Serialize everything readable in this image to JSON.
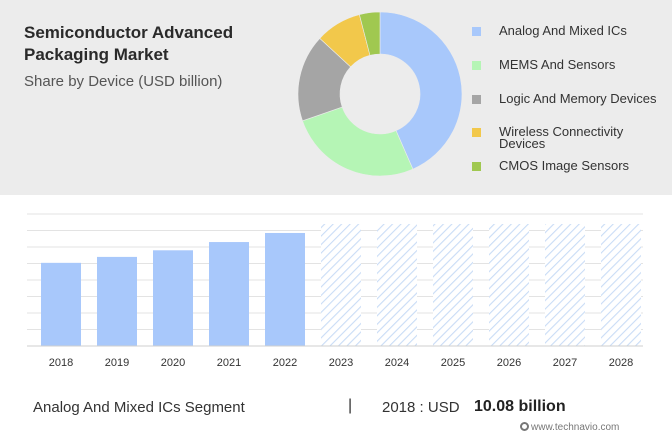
{
  "header": {
    "title": "Semiconductor Advanced Packaging Market",
    "subtitle": "Share by Device (USD billion)"
  },
  "chart_data": [
    {
      "type": "pie",
      "variant": "donut",
      "legend_position": "right",
      "slices": [
        {
          "label": "Analog And Mixed ICs",
          "value": 43,
          "color": "#a8c8fb"
        },
        {
          "label": "MEMS And Sensors",
          "value": 26,
          "color": "#b5f5b5"
        },
        {
          "label": "Logic And Memory Devices",
          "value": 17,
          "color": "#a5a5a5"
        },
        {
          "label": "Wireless Connectivity Devices",
          "value": 9,
          "color": "#f2c84b"
        },
        {
          "label": "CMOS Image Sensors",
          "value": 4,
          "color": "#a0c850"
        }
      ]
    },
    {
      "type": "bar",
      "categories": [
        "2018",
        "2019",
        "2020",
        "2021",
        "2022",
        "2023",
        "2024",
        "2025",
        "2026",
        "2027",
        "2028"
      ],
      "values": [
        10.08,
        10.8,
        11.6,
        12.6,
        13.7,
        null,
        null,
        null,
        null,
        null,
        null
      ],
      "forecast_categories": [
        "2023",
        "2024",
        "2025",
        "2026",
        "2027",
        "2028"
      ],
      "ylim": [
        0,
        16
      ],
      "grid": true,
      "bar_color": "#a8c8fb",
      "forecast_color": "#c9dcf6"
    }
  ],
  "footer": {
    "segment": "Analog And Mixed ICs Segment",
    "divider": "|",
    "year_label": "2018 : USD",
    "value": "10.08 billion",
    "logo": "www.technavio.com"
  }
}
